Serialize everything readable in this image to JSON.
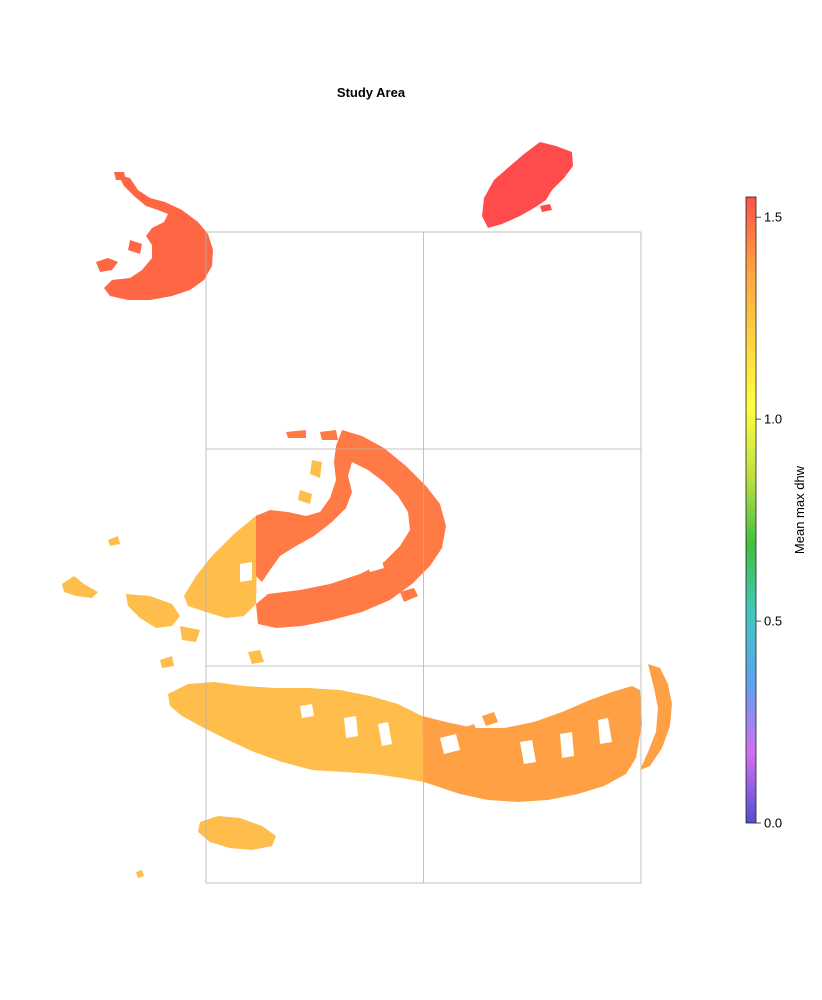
{
  "title": "Study Area",
  "colorbar": {
    "label": "Mean max dhw",
    "min": 0.0,
    "max": 1.55,
    "ticks": [
      {
        "value": 0.0,
        "label": "0.0"
      },
      {
        "value": 0.5,
        "label": "0.5"
      },
      {
        "value": 1.0,
        "label": "1.0"
      },
      {
        "value": 1.5,
        "label": "1.5"
      }
    ],
    "colors": [
      "#5050d0",
      "#d070f0",
      "#60a0f0",
      "#40c8c0",
      "#40c040",
      "#c0e040",
      "#ffff40",
      "#ffd040",
      "#ffa040",
      "#ff5048"
    ]
  },
  "regions": {
    "northwest_patch": {
      "value": 1.42,
      "color": "#ff6644"
    },
    "northeast_patch": {
      "value": 1.55,
      "color": "#ff4b4b"
    },
    "central_atoll": {
      "value": 1.4,
      "color": "#ff7a45"
    },
    "southern_band_west": {
      "value": 1.32,
      "color": "#ffbd4c"
    },
    "southern_band_east": {
      "value": 1.38,
      "color": "#ffa045"
    },
    "southwest_islet": {
      "value": 1.32,
      "color": "#ffbd4c"
    }
  }
}
